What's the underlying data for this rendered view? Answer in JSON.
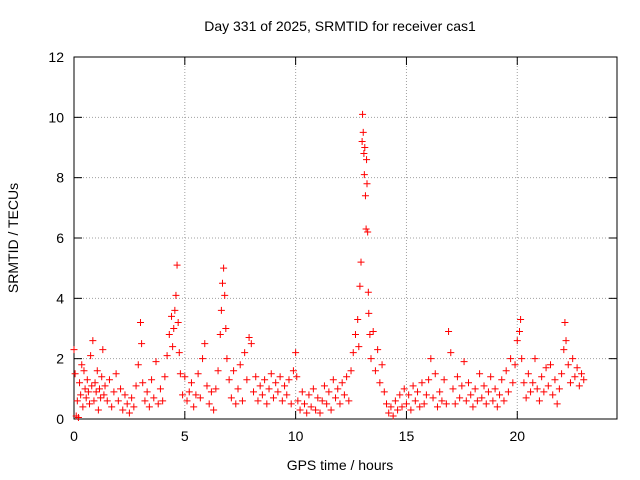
{
  "chart_data": {
    "type": "scatter",
    "title": "Day 331 of 2025, SRMTID for receiver cas1",
    "xlabel": "GPS time / hours",
    "ylabel": "SRMTID / TECUs",
    "xlim": [
      0,
      24.5
    ],
    "ylim": [
      0,
      12
    ],
    "xticks": [
      0,
      5,
      10,
      15,
      20
    ],
    "yticks": [
      0,
      2,
      4,
      6,
      8,
      10,
      12
    ],
    "grid": true,
    "marker": "+",
    "marker_color": "#ff0000",
    "series": [
      {
        "name": "SRMTID",
        "points": [
          [
            0.0,
            2.3
          ],
          [
            0.05,
            1.5
          ],
          [
            0.1,
            0.1
          ],
          [
            0.15,
            0.6
          ],
          [
            0.2,
            0.05
          ],
          [
            0.25,
            1.2
          ],
          [
            0.3,
            0.8
          ],
          [
            0.35,
            1.8
          ],
          [
            0.4,
            0.4
          ],
          [
            0.45,
            1.6
          ],
          [
            0.5,
            1.0
          ],
          [
            0.55,
            0.7
          ],
          [
            0.6,
            1.3
          ],
          [
            0.65,
            0.9
          ],
          [
            0.7,
            0.5
          ],
          [
            0.75,
            2.1
          ],
          [
            0.8,
            1.1
          ],
          [
            0.85,
            2.6
          ],
          [
            0.9,
            0.6
          ],
          [
            0.95,
            1.2
          ],
          [
            1.0,
            0.9
          ],
          [
            1.05,
            1.6
          ],
          [
            1.1,
            0.3
          ],
          [
            1.15,
            1.0
          ],
          [
            1.2,
            0.7
          ],
          [
            1.25,
            1.4
          ],
          [
            1.3,
            2.3
          ],
          [
            1.35,
            0.8
          ],
          [
            1.4,
            1.1
          ],
          [
            1.5,
            0.6
          ],
          [
            1.6,
            1.3
          ],
          [
            1.7,
            0.4
          ],
          [
            1.8,
            0.9
          ],
          [
            1.9,
            1.5
          ],
          [
            2.0,
            0.6
          ],
          [
            2.1,
            1.0
          ],
          [
            2.2,
            0.3
          ],
          [
            2.3,
            0.8
          ],
          [
            2.4,
            0.5
          ],
          [
            2.5,
            0.2
          ],
          [
            2.6,
            0.7
          ],
          [
            2.7,
            0.4
          ],
          [
            2.8,
            1.1
          ],
          [
            2.9,
            1.8
          ],
          [
            3.0,
            3.2
          ],
          [
            3.05,
            2.5
          ],
          [
            3.1,
            1.2
          ],
          [
            3.2,
            0.6
          ],
          [
            3.3,
            0.9
          ],
          [
            3.4,
            0.4
          ],
          [
            3.5,
            1.3
          ],
          [
            3.6,
            0.7
          ],
          [
            3.7,
            1.9
          ],
          [
            3.8,
            0.5
          ],
          [
            3.9,
            1.0
          ],
          [
            4.0,
            0.6
          ],
          [
            4.1,
            1.4
          ],
          [
            4.2,
            2.1
          ],
          [
            4.3,
            2.8
          ],
          [
            4.4,
            3.4
          ],
          [
            4.45,
            2.4
          ],
          [
            4.5,
            3.0
          ],
          [
            4.55,
            3.6
          ],
          [
            4.6,
            4.1
          ],
          [
            4.65,
            5.1
          ],
          [
            4.7,
            3.2
          ],
          [
            4.75,
            2.2
          ],
          [
            4.8,
            1.5
          ],
          [
            4.9,
            0.8
          ],
          [
            5.0,
            1.4
          ],
          [
            5.1,
            0.6
          ],
          [
            5.2,
            0.9
          ],
          [
            5.3,
            1.2
          ],
          [
            5.4,
            0.4
          ],
          [
            5.5,
            0.8
          ],
          [
            5.6,
            1.5
          ],
          [
            5.7,
            0.7
          ],
          [
            5.8,
            2.0
          ],
          [
            5.9,
            2.5
          ],
          [
            6.0,
            1.1
          ],
          [
            6.1,
            0.5
          ],
          [
            6.2,
            0.9
          ],
          [
            6.3,
            0.3
          ],
          [
            6.4,
            1.0
          ],
          [
            6.5,
            1.6
          ],
          [
            6.6,
            2.8
          ],
          [
            6.65,
            3.6
          ],
          [
            6.7,
            4.5
          ],
          [
            6.75,
            5.0
          ],
          [
            6.8,
            4.1
          ],
          [
            6.85,
            3.0
          ],
          [
            6.9,
            2.0
          ],
          [
            7.0,
            1.3
          ],
          [
            7.1,
            0.7
          ],
          [
            7.2,
            1.6
          ],
          [
            7.3,
            0.5
          ],
          [
            7.4,
            1.0
          ],
          [
            7.5,
            1.8
          ],
          [
            7.6,
            0.6
          ],
          [
            7.7,
            2.2
          ],
          [
            7.8,
            1.3
          ],
          [
            7.9,
            2.7
          ],
          [
            8.0,
            2.5
          ],
          [
            8.1,
            0.9
          ],
          [
            8.2,
            1.4
          ],
          [
            8.3,
            0.6
          ],
          [
            8.4,
            1.1
          ],
          [
            8.5,
            0.8
          ],
          [
            8.6,
            1.3
          ],
          [
            8.7,
            0.5
          ],
          [
            8.8,
            1.0
          ],
          [
            8.9,
            1.5
          ],
          [
            9.0,
            0.7
          ],
          [
            9.1,
            1.2
          ],
          [
            9.2,
            0.9
          ],
          [
            9.3,
            1.4
          ],
          [
            9.4,
            0.6
          ],
          [
            9.5,
            1.1
          ],
          [
            9.6,
            0.8
          ],
          [
            9.7,
            1.3
          ],
          [
            9.8,
            0.5
          ],
          [
            9.9,
            1.6
          ],
          [
            10.0,
            2.2
          ],
          [
            10.05,
            1.4
          ],
          [
            10.1,
            0.6
          ],
          [
            10.2,
            0.3
          ],
          [
            10.3,
            0.9
          ],
          [
            10.4,
            0.5
          ],
          [
            10.5,
            0.2
          ],
          [
            10.6,
            0.8
          ],
          [
            10.7,
            0.4
          ],
          [
            10.8,
            1.0
          ],
          [
            10.9,
            0.3
          ],
          [
            11.0,
            0.7
          ],
          [
            11.1,
            0.2
          ],
          [
            11.2,
            0.6
          ],
          [
            11.3,
            1.1
          ],
          [
            11.4,
            0.5
          ],
          [
            11.5,
            0.9
          ],
          [
            11.6,
            0.3
          ],
          [
            11.7,
            1.3
          ],
          [
            11.8,
            0.7
          ],
          [
            11.9,
            1.0
          ],
          [
            12.0,
            0.5
          ],
          [
            12.1,
            1.2
          ],
          [
            12.2,
            0.8
          ],
          [
            12.3,
            1.4
          ],
          [
            12.4,
            0.6
          ],
          [
            12.5,
            1.6
          ],
          [
            12.6,
            2.2
          ],
          [
            12.7,
            2.8
          ],
          [
            12.8,
            3.3
          ],
          [
            12.85,
            2.4
          ],
          [
            12.9,
            4.4
          ],
          [
            12.95,
            5.2
          ],
          [
            13.0,
            9.2
          ],
          [
            13.02,
            10.1
          ],
          [
            13.05,
            9.5
          ],
          [
            13.08,
            8.8
          ],
          [
            13.1,
            8.1
          ],
          [
            13.12,
            9.0
          ],
          [
            13.15,
            7.4
          ],
          [
            13.18,
            6.3
          ],
          [
            13.2,
            8.6
          ],
          [
            13.22,
            7.8
          ],
          [
            13.25,
            6.2
          ],
          [
            13.28,
            4.2
          ],
          [
            13.3,
            3.5
          ],
          [
            13.35,
            2.8
          ],
          [
            13.4,
            2.0
          ],
          [
            13.5,
            2.9
          ],
          [
            13.6,
            1.6
          ],
          [
            13.7,
            2.3
          ],
          [
            13.8,
            1.2
          ],
          [
            13.9,
            1.8
          ],
          [
            14.0,
            0.9
          ],
          [
            14.1,
            0.5
          ],
          [
            14.2,
            0.2
          ],
          [
            14.3,
            0.4
          ],
          [
            14.4,
            0.1
          ],
          [
            14.5,
            0.6
          ],
          [
            14.6,
            0.3
          ],
          [
            14.7,
            0.8
          ],
          [
            14.8,
            0.4
          ],
          [
            14.9,
            1.0
          ],
          [
            15.0,
            0.5
          ],
          [
            15.1,
            0.8
          ],
          [
            15.2,
            0.3
          ],
          [
            15.3,
            1.1
          ],
          [
            15.4,
            0.6
          ],
          [
            15.5,
            0.9
          ],
          [
            15.6,
            0.4
          ],
          [
            15.7,
            1.2
          ],
          [
            15.8,
            0.5
          ],
          [
            15.9,
            0.8
          ],
          [
            16.0,
            1.3
          ],
          [
            16.1,
            2.0
          ],
          [
            16.2,
            0.7
          ],
          [
            16.3,
            1.5
          ],
          [
            16.4,
            0.4
          ],
          [
            16.5,
            0.9
          ],
          [
            16.6,
            0.6
          ],
          [
            16.7,
            1.3
          ],
          [
            16.8,
            0.5
          ],
          [
            16.9,
            2.9
          ],
          [
            17.0,
            2.2
          ],
          [
            17.1,
            1.0
          ],
          [
            17.2,
            0.5
          ],
          [
            17.3,
            1.4
          ],
          [
            17.4,
            0.7
          ],
          [
            17.5,
            1.1
          ],
          [
            17.6,
            1.9
          ],
          [
            17.7,
            0.6
          ],
          [
            17.8,
            1.2
          ],
          [
            17.9,
            0.8
          ],
          [
            18.0,
            0.4
          ],
          [
            18.1,
            1.0
          ],
          [
            18.2,
            0.6
          ],
          [
            18.3,
            1.5
          ],
          [
            18.4,
            0.7
          ],
          [
            18.5,
            1.1
          ],
          [
            18.6,
            0.5
          ],
          [
            18.7,
            0.9
          ],
          [
            18.8,
            1.4
          ],
          [
            18.9,
            0.6
          ],
          [
            19.0,
            1.0
          ],
          [
            19.1,
            0.4
          ],
          [
            19.2,
            0.8
          ],
          [
            19.3,
            1.3
          ],
          [
            19.4,
            0.6
          ],
          [
            19.5,
            1.6
          ],
          [
            19.6,
            0.9
          ],
          [
            19.7,
            2.0
          ],
          [
            19.8,
            1.2
          ],
          [
            19.9,
            1.8
          ],
          [
            20.0,
            2.6
          ],
          [
            20.1,
            2.9
          ],
          [
            20.15,
            3.3
          ],
          [
            20.2,
            2.0
          ],
          [
            20.3,
            1.2
          ],
          [
            20.4,
            0.7
          ],
          [
            20.5,
            1.5
          ],
          [
            20.6,
            0.9
          ],
          [
            20.7,
            1.2
          ],
          [
            20.8,
            2.0
          ],
          [
            20.9,
            1.0
          ],
          [
            21.0,
            0.6
          ],
          [
            21.1,
            1.4
          ],
          [
            21.2,
            0.9
          ],
          [
            21.3,
            1.7
          ],
          [
            21.4,
            1.1
          ],
          [
            21.5,
            1.8
          ],
          [
            21.6,
            0.8
          ],
          [
            21.7,
            1.3
          ],
          [
            21.8,
            0.5
          ],
          [
            21.9,
            1.0
          ],
          [
            22.0,
            1.5
          ],
          [
            22.1,
            2.3
          ],
          [
            22.15,
            3.2
          ],
          [
            22.2,
            2.6
          ],
          [
            22.3,
            1.8
          ],
          [
            22.4,
            1.2
          ],
          [
            22.5,
            2.0
          ],
          [
            22.6,
            1.4
          ],
          [
            22.7,
            1.7
          ],
          [
            22.8,
            1.1
          ],
          [
            22.9,
            1.5
          ],
          [
            23.0,
            1.3
          ]
        ]
      }
    ]
  }
}
